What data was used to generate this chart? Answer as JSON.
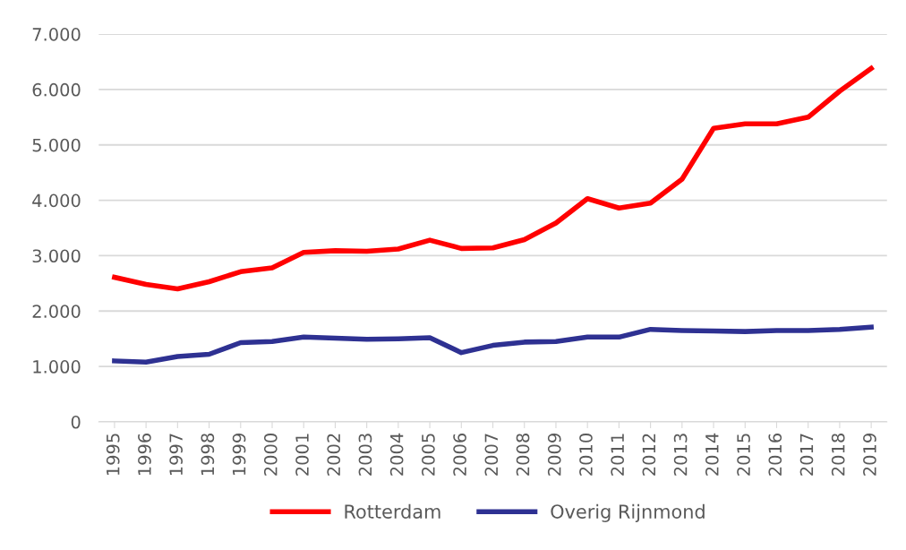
{
  "chart_data": {
    "type": "line",
    "categories": [
      "1995",
      "1996",
      "1997",
      "1998",
      "1999",
      "2000",
      "2001",
      "2002",
      "2003",
      "2004",
      "2005",
      "2006",
      "2007",
      "2008",
      "2009",
      "2010",
      "2011",
      "2012",
      "2013",
      "2014",
      "2015",
      "2016",
      "2017",
      "2018",
      "2019"
    ],
    "series": [
      {
        "name": "Rotterdam",
        "color": "#ff0000",
        "values": [
          2610,
          2480,
          2400,
          2530,
          2710,
          2780,
          3060,
          3090,
          3080,
          3120,
          3280,
          3130,
          3140,
          3290,
          3590,
          4030,
          3860,
          3950,
          4380,
          5300,
          5380,
          5380,
          5500,
          5970,
          6380
        ]
      },
      {
        "name": "Overig Rijnmond",
        "color": "#2e3192",
        "values": [
          1100,
          1080,
          1180,
          1220,
          1430,
          1450,
          1530,
          1510,
          1490,
          1500,
          1520,
          1250,
          1380,
          1440,
          1450,
          1530,
          1530,
          1670,
          1650,
          1640,
          1630,
          1650,
          1650,
          1670,
          1710
        ]
      }
    ],
    "ylim": [
      0,
      7000
    ],
    "yticks": [
      {
        "value": 0,
        "label": "0"
      },
      {
        "value": 1000,
        "label": "1.000"
      },
      {
        "value": 2000,
        "label": "2.000"
      },
      {
        "value": 3000,
        "label": "3.000"
      },
      {
        "value": 4000,
        "label": "4.000"
      },
      {
        "value": 5000,
        "label": "5.000"
      },
      {
        "value": 6000,
        "label": "6.000"
      },
      {
        "value": 7000,
        "label": "7.000"
      }
    ],
    "grid": "y",
    "legend": "bottom",
    "marker": "none",
    "line_style": "solid"
  }
}
